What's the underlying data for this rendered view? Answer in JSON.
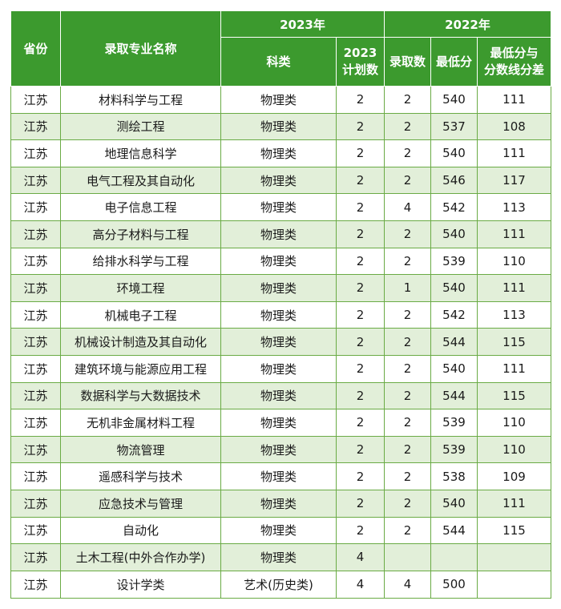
{
  "headers": {
    "province": "省份",
    "major": "录取专业名称",
    "year2023": "2023年",
    "year2022": "2022年",
    "category": "科类",
    "plan2023_line1": "2023",
    "plan2023_line2": "计划数",
    "admitted": "录取数",
    "min_score": "最低分",
    "diff_line1": "最低分与",
    "diff_line2": "分数线分差"
  },
  "rows": [
    {
      "province": "江苏",
      "major": "材料科学与工程",
      "category": "物理类",
      "plan": "2",
      "admitted": "2",
      "min": "540",
      "diff": "111"
    },
    {
      "province": "江苏",
      "major": "测绘工程",
      "category": "物理类",
      "plan": "2",
      "admitted": "2",
      "min": "537",
      "diff": "108"
    },
    {
      "province": "江苏",
      "major": "地理信息科学",
      "category": "物理类",
      "plan": "2",
      "admitted": "2",
      "min": "540",
      "diff": "111"
    },
    {
      "province": "江苏",
      "major": "电气工程及其自动化",
      "category": "物理类",
      "plan": "2",
      "admitted": "2",
      "min": "546",
      "diff": "117"
    },
    {
      "province": "江苏",
      "major": "电子信息工程",
      "category": "物理类",
      "plan": "2",
      "admitted": "4",
      "min": "542",
      "diff": "113"
    },
    {
      "province": "江苏",
      "major": "高分子材料与工程",
      "category": "物理类",
      "plan": "2",
      "admitted": "2",
      "min": "540",
      "diff": "111"
    },
    {
      "province": "江苏",
      "major": "给排水科学与工程",
      "category": "物理类",
      "plan": "2",
      "admitted": "2",
      "min": "539",
      "diff": "110"
    },
    {
      "province": "江苏",
      "major": "环境工程",
      "category": "物理类",
      "plan": "2",
      "admitted": "1",
      "min": "540",
      "diff": "111"
    },
    {
      "province": "江苏",
      "major": "机械电子工程",
      "category": "物理类",
      "plan": "2",
      "admitted": "2",
      "min": "542",
      "diff": "113"
    },
    {
      "province": "江苏",
      "major": "机械设计制造及其自动化",
      "category": "物理类",
      "plan": "2",
      "admitted": "2",
      "min": "544",
      "diff": "115"
    },
    {
      "province": "江苏",
      "major": "建筑环境与能源应用工程",
      "category": "物理类",
      "plan": "2",
      "admitted": "2",
      "min": "540",
      "diff": "111"
    },
    {
      "province": "江苏",
      "major": "数据科学与大数据技术",
      "category": "物理类",
      "plan": "2",
      "admitted": "2",
      "min": "544",
      "diff": "115"
    },
    {
      "province": "江苏",
      "major": "无机非金属材料工程",
      "category": "物理类",
      "plan": "2",
      "admitted": "2",
      "min": "539",
      "diff": "110"
    },
    {
      "province": "江苏",
      "major": "物流管理",
      "category": "物理类",
      "plan": "2",
      "admitted": "2",
      "min": "539",
      "diff": "110"
    },
    {
      "province": "江苏",
      "major": "遥感科学与技术",
      "category": "物理类",
      "plan": "2",
      "admitted": "2",
      "min": "538",
      "diff": "109"
    },
    {
      "province": "江苏",
      "major": "应急技术与管理",
      "category": "物理类",
      "plan": "2",
      "admitted": "2",
      "min": "540",
      "diff": "111"
    },
    {
      "province": "江苏",
      "major": "自动化",
      "category": "物理类",
      "plan": "2",
      "admitted": "2",
      "min": "544",
      "diff": "115"
    },
    {
      "province": "江苏",
      "major": "土木工程(中外合作办学)",
      "category": "物理类",
      "plan": "4",
      "admitted": "",
      "min": "",
      "diff": ""
    },
    {
      "province": "江苏",
      "major": "设计学类",
      "category": "艺术(历史类)",
      "plan": "4",
      "admitted": "4",
      "min": "500",
      "diff": ""
    }
  ],
  "colors": {
    "header_bg": "#3c9a2e",
    "stripe_bg": "#e2efd9",
    "border": "#6aab45"
  }
}
